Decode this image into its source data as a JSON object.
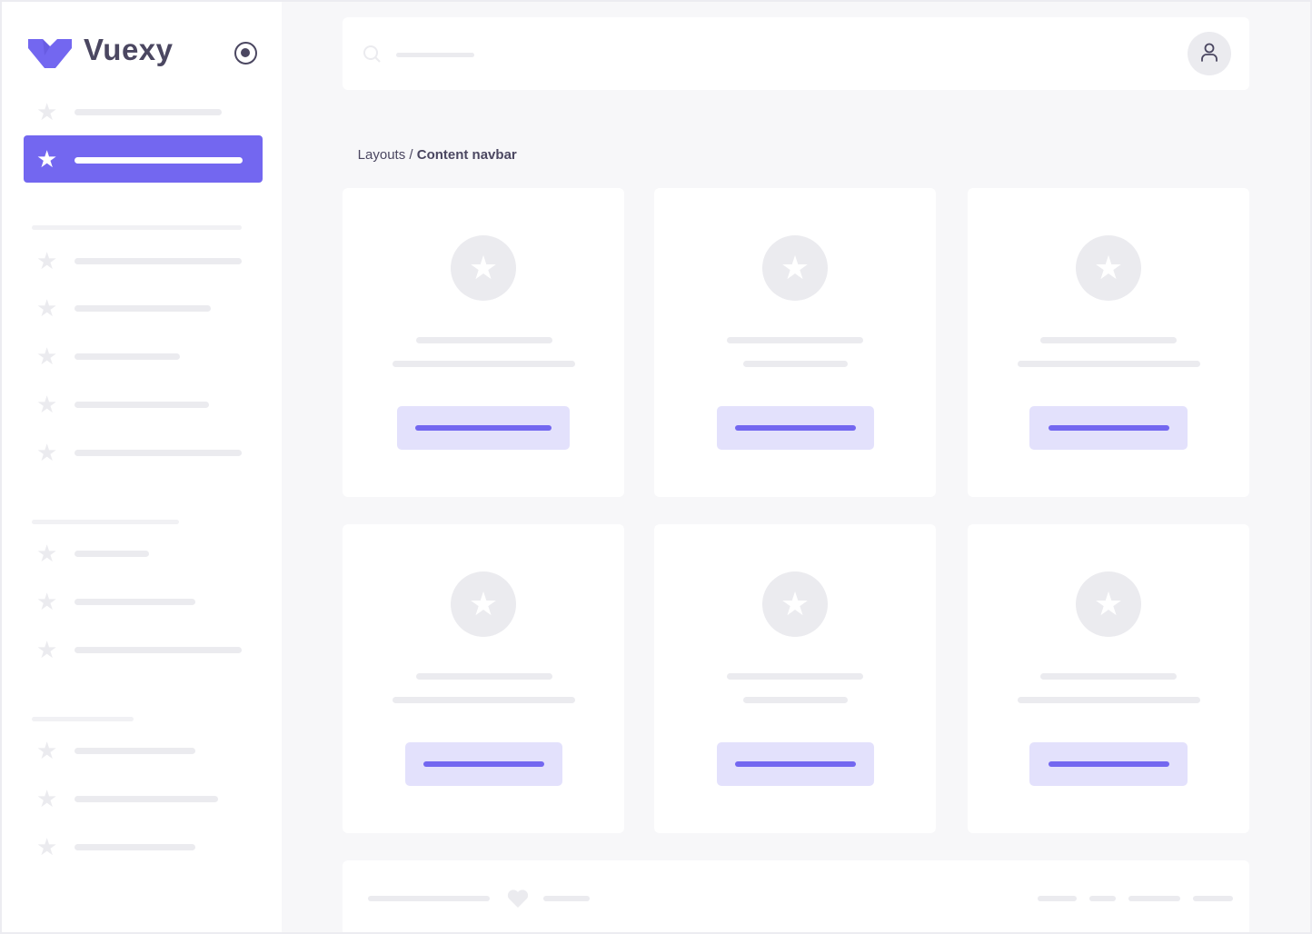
{
  "brand": {
    "name": "Vuexy",
    "color": "#7367f0"
  },
  "header": {
    "search_icon": "search-icon",
    "user_icon": "user-icon"
  },
  "breadcrumb": {
    "parent": "Layouts",
    "separator": " / ",
    "current": "Content navbar"
  },
  "sidebar": {
    "toggle_icon": "radio-circle-icon",
    "active_index": 1
  },
  "colors": {
    "primary": "#7367f0",
    "primary_light": "#e3e1fc",
    "placeholder": "#ebebef",
    "background": "#f7f7f9"
  }
}
